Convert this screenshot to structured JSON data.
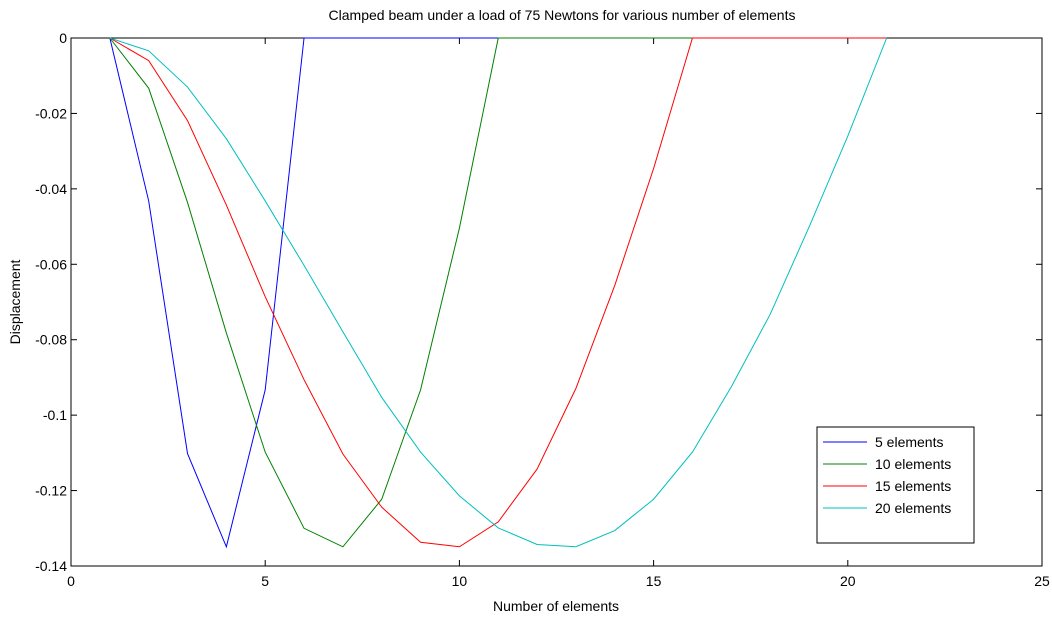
{
  "chart_data": {
    "type": "line",
    "title": "Clamped beam under a load of 75 Newtons for various number of elements",
    "xlabel": "Number of elements",
    "ylabel": "Displacement",
    "xlim": [
      0,
      25
    ],
    "ylim": [
      -0.14,
      0
    ],
    "xticks": [
      "0",
      "5",
      "10",
      "15",
      "20",
      "25"
    ],
    "yticks": [
      "0",
      "-0.02",
      "-0.04",
      "-0.06",
      "-0.08",
      "-0.1",
      "-0.12",
      "-0.14"
    ],
    "grid": false,
    "legend_position": "bottom-right",
    "series": [
      {
        "name": "5 elements",
        "color": "#0000ff",
        "x": [
          1,
          2,
          3,
          4,
          5,
          6,
          7,
          8,
          9,
          10,
          11,
          12,
          13,
          14,
          15,
          16,
          17,
          18,
          19,
          20,
          21
        ],
        "y": [
          0,
          -0.0432,
          -0.1102,
          -0.1349,
          -0.0933,
          0,
          0,
          0,
          0,
          0,
          0,
          0,
          0,
          0,
          0,
          0,
          0,
          0,
          0,
          0,
          0
        ]
      },
      {
        "name": "10 elements",
        "color": "#008000",
        "x": [
          1,
          2,
          3,
          4,
          5,
          6,
          7,
          8,
          9,
          10,
          11,
          12,
          13,
          14,
          15,
          16,
          17,
          18,
          19,
          20,
          21
        ],
        "y": [
          0,
          -0.0133,
          -0.0436,
          -0.0782,
          -0.1098,
          -0.13,
          -0.1349,
          -0.1223,
          -0.0933,
          -0.0504,
          0,
          0,
          0,
          0,
          0,
          0,
          0,
          0,
          0,
          0,
          0
        ]
      },
      {
        "name": "15 elements",
        "color": "#ff0000",
        "x": [
          1,
          2,
          3,
          4,
          5,
          6,
          7,
          8,
          9,
          10,
          11,
          12,
          13,
          14,
          15,
          16,
          17,
          18,
          19,
          20,
          21
        ],
        "y": [
          0,
          -0.006,
          -0.0219,
          -0.0443,
          -0.0686,
          -0.0906,
          -0.1103,
          -0.1244,
          -0.1337,
          -0.1349,
          -0.1283,
          -0.1143,
          -0.0929,
          -0.0656,
          -0.0346,
          0,
          0,
          0,
          0,
          0,
          0
        ]
      },
      {
        "name": "20 elements",
        "color": "#00bfbf",
        "x": [
          1,
          2,
          3,
          4,
          5,
          6,
          7,
          8,
          9,
          10,
          11,
          12,
          13,
          14,
          15,
          16,
          17,
          18,
          19,
          20,
          21
        ],
        "y": [
          0,
          -0.0034,
          -0.013,
          -0.0267,
          -0.0432,
          -0.0603,
          -0.0779,
          -0.0953,
          -0.1098,
          -0.1214,
          -0.1299,
          -0.1343,
          -0.1349,
          -0.1306,
          -0.1223,
          -0.1098,
          -0.0925,
          -0.0733,
          -0.0502,
          -0.026,
          0
        ]
      }
    ]
  }
}
